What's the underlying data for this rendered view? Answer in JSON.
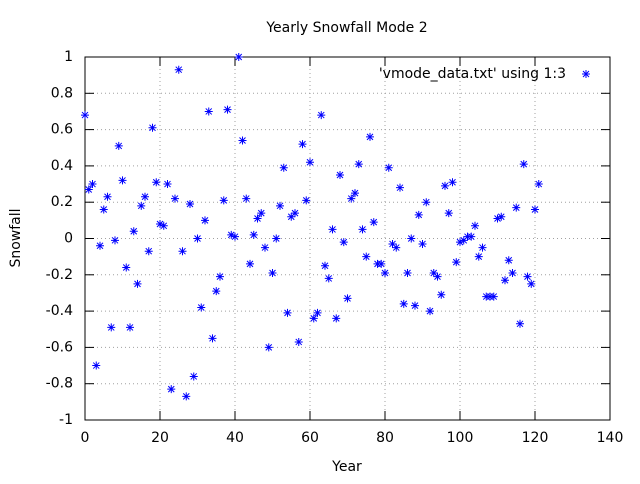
{
  "chart_data": {
    "type": "scatter",
    "title": "Yearly Snowfall Mode 2",
    "x_label": "Year",
    "y_label": "Snowfall",
    "xlim": [
      0,
      140
    ],
    "xticks": [
      0,
      20,
      40,
      60,
      80,
      100,
      120,
      140
    ],
    "ylim": [
      -1,
      1
    ],
    "yticks": [
      -1,
      -0.8,
      -0.6,
      -0.4,
      -0.2,
      0,
      0.2,
      0.4,
      0.6,
      0.8,
      1
    ],
    "grid": true,
    "legend": "top-right",
    "series": [
      {
        "name": "'vmode_data.txt' using 1:3",
        "color": "#0000ff",
        "x": [
          0,
          1,
          2,
          3,
          4,
          5,
          6,
          7,
          8,
          9,
          10,
          11,
          12,
          13,
          14,
          15,
          16,
          17,
          18,
          19,
          20,
          21,
          22,
          23,
          24,
          25,
          26,
          27,
          28,
          29,
          30,
          31,
          32,
          33,
          34,
          35,
          36,
          37,
          38,
          39,
          40,
          41,
          42,
          43,
          44,
          45,
          46,
          47,
          48,
          49,
          50,
          51,
          52,
          53,
          54,
          55,
          56,
          57,
          58,
          59,
          60,
          61,
          62,
          63,
          64,
          65,
          66,
          67,
          68,
          69,
          70,
          71,
          72,
          73,
          74,
          75,
          76,
          77,
          78,
          79,
          80,
          81,
          82,
          83,
          84,
          85,
          86,
          87,
          88,
          89,
          90,
          91,
          92,
          93,
          94,
          95,
          96,
          97,
          98,
          99,
          100,
          101,
          102,
          103,
          104,
          105,
          106,
          107,
          108,
          109,
          110,
          111,
          112,
          113,
          114,
          115,
          116,
          117,
          118,
          119,
          120,
          121
        ],
        "values": [
          0.68,
          0.27,
          0.3,
          -0.7,
          -0.04,
          0.16,
          0.23,
          -0.49,
          -0.01,
          0.51,
          0.32,
          -0.16,
          -0.49,
          0.04,
          -0.25,
          0.18,
          0.23,
          -0.07,
          0.61,
          0.31,
          0.08,
          0.07,
          0.3,
          -0.83,
          0.22,
          0.93,
          -0.07,
          -0.87,
          0.19,
          -0.76,
          0.0,
          -0.38,
          0.1,
          0.7,
          -0.55,
          -0.29,
          -0.21,
          0.21,
          0.71,
          0.02,
          0.01,
          1.0,
          0.54,
          0.22,
          -0.14,
          0.02,
          0.11,
          0.14,
          -0.05,
          -0.6,
          -0.19,
          0.0,
          0.18,
          0.39,
          -0.41,
          0.12,
          0.14,
          -0.57,
          0.52,
          0.21,
          0.42,
          -0.44,
          -0.41,
          0.68,
          -0.15,
          -0.22,
          0.05,
          -0.44,
          0.35,
          -0.02,
          -0.33,
          0.22,
          0.25,
          0.41,
          0.05,
          -0.1,
          0.56,
          0.09,
          -0.14,
          -0.14,
          -0.19,
          0.39,
          -0.03,
          -0.05,
          0.28,
          -0.36,
          -0.19,
          0.0,
          -0.37,
          0.13,
          -0.03,
          0.2,
          -0.4,
          -0.19,
          -0.21,
          -0.31,
          0.29,
          0.14,
          0.31,
          -0.13,
          -0.02,
          -0.01,
          0.01,
          0.01,
          0.07,
          -0.1,
          -0.05,
          -0.32,
          -0.32,
          -0.32,
          0.11,
          0.12,
          -0.23,
          -0.12,
          -0.19,
          0.17,
          -0.47,
          0.41,
          -0.21,
          -0.25,
          0.16,
          0.3
        ]
      }
    ]
  }
}
